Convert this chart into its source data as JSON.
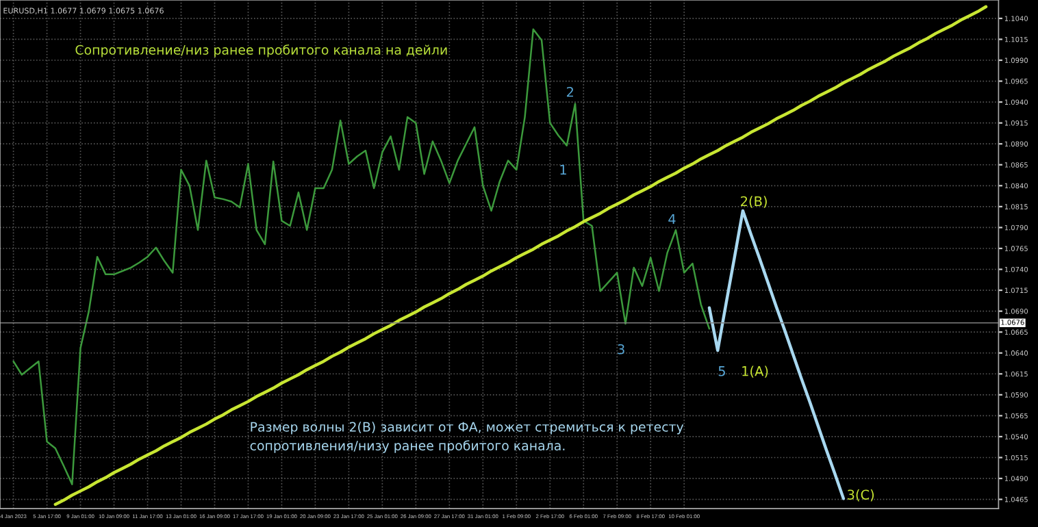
{
  "chart_data": {
    "type": "line",
    "title": "Сопротивление/низ ранее пробитого канала на дейли",
    "annotations": [
      "EURUSD,H1 1.0677 1.0679 1.0675 1.0676",
      "Размер волны 2(B) зависит от ФА, может стремиться к ретесту\nсопротивления/низу ранее пробитого канала.",
      "1",
      "2",
      "3",
      "4",
      "5",
      "1(A)",
      "2(B)",
      "3(C)"
    ],
    "categories": [
      "4 Jan 2023",
      null,
      null,
      null,
      "5 Jan 17:00",
      null,
      null,
      null,
      "9 Jan 01:00",
      null,
      null,
      null,
      "10 Jan 09:00",
      null,
      null,
      null,
      "11 Jan 17:00",
      null,
      null,
      null,
      "13 Jan 01:00",
      null,
      null,
      null,
      "16 Jan 09:00",
      null,
      null,
      null,
      "17 Jan 17:00",
      null,
      null,
      null,
      "19 Jan 01:00",
      null,
      null,
      null,
      "20 Jan 09:00",
      null,
      null,
      null,
      "23 Jan 17:00",
      null,
      null,
      null,
      "25 Jan 01:00",
      null,
      null,
      null,
      "26 Jan 09:00",
      null,
      null,
      null,
      "27 Jan 17:00",
      null,
      null,
      null,
      "31 Jan 01:00",
      null,
      null,
      null,
      "1 Feb 09:00",
      null,
      null,
      null,
      "2 Feb 17:00",
      null,
      null,
      null,
      "6 Feb 01:00",
      null,
      null,
      null,
      "7 Feb 09:00",
      null,
      null,
      null,
      "8 Feb 17:00",
      null,
      null,
      null,
      "10 Feb 01:00",
      null,
      null,
      null,
      null,
      null,
      null,
      null,
      null,
      null,
      null,
      null,
      null,
      null,
      null,
      null,
      null,
      null,
      null,
      null,
      null,
      null,
      null,
      null,
      null,
      null,
      null,
      null,
      null,
      null,
      null,
      null,
      null,
      null,
      null,
      null,
      null,
      null
    ],
    "series": [
      {
        "color": "#3c9a3c",
        "values": [
          1.063,
          1.0614,
          1.0622,
          1.063,
          1.0534,
          1.0526,
          1.0505,
          1.0483,
          1.0646,
          1.069,
          1.0755,
          1.0734,
          1.0734,
          1.0738,
          1.0742,
          1.0748,
          1.0755,
          1.0766,
          1.075,
          1.0736,
          1.0859,
          1.084,
          1.0787,
          1.087,
          1.0826,
          1.0824,
          1.0821,
          1.0814,
          1.0866,
          1.0787,
          1.077,
          1.0869,
          1.0798,
          1.0792,
          1.0832,
          1.0787,
          1.0837,
          1.0837,
          1.0859,
          1.0918,
          1.0866,
          1.0875,
          1.0882,
          1.0837,
          1.088,
          1.0899,
          1.0859,
          1.0922,
          1.0915,
          1.0854,
          1.0893,
          1.087,
          1.0843,
          1.087,
          1.089,
          1.091,
          1.084,
          1.081,
          1.0845,
          1.087,
          1.0859,
          1.0922,
          1.1027,
          1.1014,
          1.0915,
          1.09,
          1.0888,
          1.0938,
          1.0798,
          1.0792,
          1.0714,
          1.0725,
          1.0736,
          1.0675,
          1.0742,
          1.072,
          1.0754,
          1.0714,
          1.076,
          1.0787,
          1.0736,
          1.0747,
          1.0698,
          1.0669,
          null,
          null,
          null,
          null,
          null,
          null,
          null,
          null,
          null,
          null,
          null,
          null,
          null,
          null,
          null,
          null,
          null,
          null,
          null,
          null,
          null,
          null,
          null,
          null,
          null,
          null,
          null,
          null,
          null,
          null,
          null,
          null,
          null,
          null
        ]
      },
      {
        "color": "#c8e632",
        "values": [
          null,
          null,
          null,
          null,
          null,
          1.0459,
          1.0464,
          1.047,
          1.0475,
          1.048,
          1.0486,
          1.0491,
          1.0497,
          1.0502,
          1.0507,
          1.0513,
          1.0518,
          1.0523,
          1.0529,
          1.0534,
          1.0539,
          1.0545,
          1.055,
          1.0555,
          1.0561,
          1.0566,
          1.0572,
          1.0577,
          1.0582,
          1.0588,
          1.0593,
          1.0598,
          1.0604,
          1.0609,
          1.0614,
          1.062,
          1.0625,
          1.063,
          1.0636,
          1.0641,
          1.0647,
          1.0652,
          1.0657,
          1.0663,
          1.0668,
          1.0673,
          1.0679,
          1.0684,
          1.0689,
          1.0695,
          1.07,
          1.0705,
          1.0711,
          1.0716,
          1.0722,
          1.0727,
          1.0732,
          1.0738,
          1.0743,
          1.0748,
          1.0754,
          1.0759,
          1.0764,
          1.077,
          1.0775,
          1.078,
          1.0786,
          1.0791,
          1.0797,
          1.0802,
          1.0807,
          1.0813,
          1.0818,
          1.0823,
          1.0829,
          1.0834,
          1.0839,
          1.0845,
          1.085,
          1.0855,
          1.0861,
          1.0866,
          1.0872,
          1.0877,
          1.0882,
          1.0888,
          1.0893,
          1.0898,
          1.0904,
          1.0909,
          1.0914,
          1.092,
          1.0925,
          1.093,
          1.0936,
          1.0941,
          1.0947,
          1.0952,
          1.0957,
          1.0963,
          1.0968,
          1.0973,
          1.0979,
          1.0984,
          1.0989,
          1.0995,
          1.1,
          1.1005,
          1.1011,
          1.1016,
          1.1022,
          1.1027,
          1.1032,
          1.1038,
          1.1043,
          1.1048,
          1.1054,
          null
        ]
      },
      {
        "color": "#a8d8f0",
        "values": [
          null,
          null,
          null,
          null,
          null,
          null,
          null,
          null,
          null,
          null,
          null,
          null,
          null,
          null,
          null,
          null,
          null,
          null,
          null,
          null,
          null,
          null,
          null,
          null,
          null,
          null,
          null,
          null,
          null,
          null,
          null,
          null,
          null,
          null,
          null,
          null,
          null,
          null,
          null,
          null,
          null,
          null,
          null,
          null,
          null,
          null,
          null,
          null,
          null,
          null,
          null,
          null,
          null,
          null,
          null,
          null,
          null,
          null,
          null,
          null,
          null,
          null,
          null,
          null,
          null,
          null,
          null,
          null,
          null,
          null,
          null,
          null,
          null,
          null,
          null,
          null,
          null,
          null,
          null,
          null,
          null,
          null,
          null,
          1.0694,
          1.0643,
          1.0699,
          1.0754,
          1.081,
          1.0781,
          1.0753,
          1.0724,
          1.0695,
          1.0667,
          1.0638,
          1.0609,
          1.0581,
          1.0552,
          1.0523,
          1.0495,
          1.0466,
          null,
          null,
          null,
          null,
          null,
          null,
          null,
          null,
          null,
          null,
          null,
          null,
          null,
          null,
          null,
          null,
          null,
          null
        ]
      }
    ],
    "ref_lines": [
      {
        "axis": "y",
        "value": 1.0676,
        "label": "1.0676",
        "color": "#808080"
      }
    ],
    "ylim": [
      1.0454,
      1.1062
    ],
    "yticks": [
      {
        "value": 1.104,
        "label": "1.1040"
      },
      {
        "value": 1.1015,
        "label": "1.1015"
      },
      {
        "value": 1.099,
        "label": "1.0990"
      },
      {
        "value": 1.0965,
        "label": "1.0965"
      },
      {
        "value": 1.094,
        "label": "1.0940"
      },
      {
        "value": 1.0915,
        "label": "1.0915"
      },
      {
        "value": 1.089,
        "label": "1.0890"
      },
      {
        "value": 1.0865,
        "label": "1.0865"
      },
      {
        "value": 1.084,
        "label": "1.0840"
      },
      {
        "value": 1.0815,
        "label": "1.0815"
      },
      {
        "value": 1.079,
        "label": "1.0790"
      },
      {
        "value": 1.0765,
        "label": "1.0765"
      },
      {
        "value": 1.074,
        "label": "1.0740"
      },
      {
        "value": 1.0715,
        "label": "1.0715"
      },
      {
        "value": 1.069,
        "label": "1.0690"
      },
      {
        "value": 1.0665,
        "label": "1.0665"
      },
      {
        "value": 1.064,
        "label": "1.0640"
      },
      {
        "value": 1.0615,
        "label": "1.0615"
      },
      {
        "value": 1.059,
        "label": "1.0590"
      },
      {
        "value": 1.0565,
        "label": "1.0565"
      },
      {
        "value": 1.054,
        "label": "1.0540"
      },
      {
        "value": 1.0515,
        "label": "1.0515"
      },
      {
        "value": 1.049,
        "label": "1.0490"
      },
      {
        "value": 1.0465,
        "label": "1.0465"
      }
    ],
    "grid": true,
    "legend": false,
    "line_style": "solid"
  }
}
